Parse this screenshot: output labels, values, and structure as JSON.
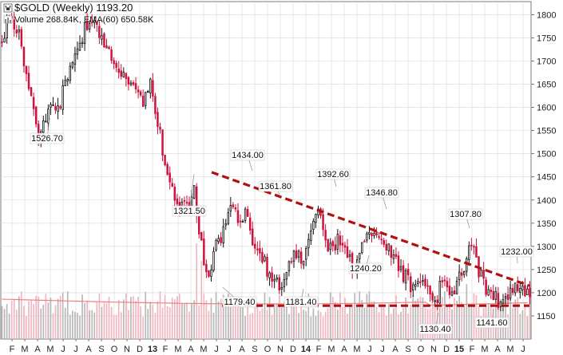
{
  "chart_data": {
    "type": "candlestick",
    "title": "$GOLD (Weekly) 1193.20",
    "volume_legend": "Volume 268.84K, EMA(60) 650.58K",
    "y_ticks": [
      1150,
      1200,
      1250,
      1300,
      1350,
      1400,
      1450,
      1500,
      1550,
      1600,
      1650,
      1700,
      1750,
      1800
    ],
    "ylim": [
      1100,
      1830
    ],
    "x_ticks": [
      {
        "label": "F",
        "bold": false
      },
      {
        "label": "M",
        "bold": false
      },
      {
        "label": "A",
        "bold": false
      },
      {
        "label": "M",
        "bold": false
      },
      {
        "label": "J",
        "bold": false
      },
      {
        "label": "J",
        "bold": false
      },
      {
        "label": "A",
        "bold": false
      },
      {
        "label": "S",
        "bold": false
      },
      {
        "label": "O",
        "bold": false
      },
      {
        "label": "N",
        "bold": false
      },
      {
        "label": "D",
        "bold": false
      },
      {
        "label": "13",
        "bold": true
      },
      {
        "label": "F",
        "bold": false
      },
      {
        "label": "M",
        "bold": false
      },
      {
        "label": "A",
        "bold": false
      },
      {
        "label": "M",
        "bold": false
      },
      {
        "label": "J",
        "bold": false
      },
      {
        "label": "J",
        "bold": false
      },
      {
        "label": "A",
        "bold": false
      },
      {
        "label": "S",
        "bold": false
      },
      {
        "label": "O",
        "bold": false
      },
      {
        "label": "N",
        "bold": false
      },
      {
        "label": "D",
        "bold": false
      },
      {
        "label": "14",
        "bold": true
      },
      {
        "label": "F",
        "bold": false
      },
      {
        "label": "M",
        "bold": false
      },
      {
        "label": "A",
        "bold": false
      },
      {
        "label": "M",
        "bold": false
      },
      {
        "label": "J",
        "bold": false
      },
      {
        "label": "J",
        "bold": false
      },
      {
        "label": "A",
        "bold": false
      },
      {
        "label": "S",
        "bold": false
      },
      {
        "label": "O",
        "bold": false
      },
      {
        "label": "N",
        "bold": false
      },
      {
        "label": "D",
        "bold": false
      },
      {
        "label": "15",
        "bold": true
      },
      {
        "label": "F",
        "bold": false
      },
      {
        "label": "M",
        "bold": false
      },
      {
        "label": "A",
        "bold": false
      },
      {
        "label": "M",
        "bold": false
      },
      {
        "label": "J",
        "bold": false
      }
    ],
    "anchors": [
      [
        0,
        1740
      ],
      [
        4,
        1800
      ],
      [
        8,
        1740
      ],
      [
        11,
        1640
      ],
      [
        15,
        1530
      ],
      [
        19,
        1590
      ],
      [
        23,
        1600
      ],
      [
        27,
        1660
      ],
      [
        31,
        1720
      ],
      [
        35,
        1780
      ],
      [
        39,
        1770
      ],
      [
        43,
        1720
      ],
      [
        47,
        1680
      ],
      [
        51,
        1670
      ],
      [
        55,
        1650
      ],
      [
        58,
        1600
      ],
      [
        61,
        1660
      ],
      [
        64,
        1570
      ],
      [
        67,
        1480
      ],
      [
        70,
        1430
      ],
      [
        73,
        1380
      ],
      [
        76,
        1390
      ],
      [
        79,
        1420
      ],
      [
        82,
        1300
      ],
      [
        85,
        1230
      ],
      [
        88,
        1300
      ],
      [
        91,
        1330
      ],
      [
        94,
        1390
      ],
      [
        97,
        1350
      ],
      [
        100,
        1380
      ],
      [
        103,
        1320
      ],
      [
        106,
        1280
      ],
      [
        109,
        1250
      ],
      [
        112,
        1230
      ],
      [
        115,
        1210
      ],
      [
        118,
        1250
      ],
      [
        121,
        1290
      ],
      [
        124,
        1270
      ],
      [
        127,
        1330
      ],
      [
        130,
        1380
      ],
      [
        133,
        1310
      ],
      [
        136,
        1300
      ],
      [
        139,
        1320
      ],
      [
        142,
        1280
      ],
      [
        145,
        1250
      ],
      [
        148,
        1310
      ],
      [
        151,
        1330
      ],
      [
        154,
        1340
      ],
      [
        157,
        1300
      ],
      [
        160,
        1290
      ],
      [
        163,
        1260
      ],
      [
        166,
        1230
      ],
      [
        169,
        1210
      ],
      [
        172,
        1240
      ],
      [
        175,
        1200
      ],
      [
        178,
        1170
      ],
      [
        181,
        1230
      ],
      [
        184,
        1190
      ],
      [
        187,
        1210
      ],
      [
        190,
        1260
      ],
      [
        193,
        1300
      ],
      [
        196,
        1250
      ],
      [
        199,
        1210
      ],
      [
        202,
        1190
      ],
      [
        205,
        1180
      ],
      [
        208,
        1200
      ],
      [
        211,
        1220
      ],
      [
        214,
        1200
      ],
      [
        217,
        1190
      ]
    ],
    "annotations": [
      {
        "label": "1526.70",
        "value": 1526.7
      },
      {
        "label": "1321.50",
        "value": 1321.5
      },
      {
        "label": "1434.00",
        "value": 1434.0
      },
      {
        "label": "1361.80",
        "value": 1361.8
      },
      {
        "label": "1392.60",
        "value": 1392.6
      },
      {
        "label": "1346.80",
        "value": 1346.8
      },
      {
        "label": "1240.20",
        "value": 1240.2
      },
      {
        "label": "1307.80",
        "value": 1307.8
      },
      {
        "label": "1232.00",
        "value": 1232.0
      },
      {
        "label": "1179.40",
        "value": 1179.4
      },
      {
        "label": "1181.40",
        "value": 1181.4
      },
      {
        "label": "1130.40",
        "value": 1130.4
      },
      {
        "label": "1141.60",
        "value": 1141.6
      }
    ],
    "trendline_resistance": [
      [
        1460
      ],
      [
        1215
      ]
    ],
    "trendline_support": [
      1172
    ],
    "colors": {
      "up": "#111111",
      "down": "#d0103a",
      "trend": "#b01010",
      "volume_down": "#f2b6c0",
      "volume_up": "#b8b8b8",
      "ema": "#f08080",
      "grid": "#d8d8d8"
    }
  }
}
